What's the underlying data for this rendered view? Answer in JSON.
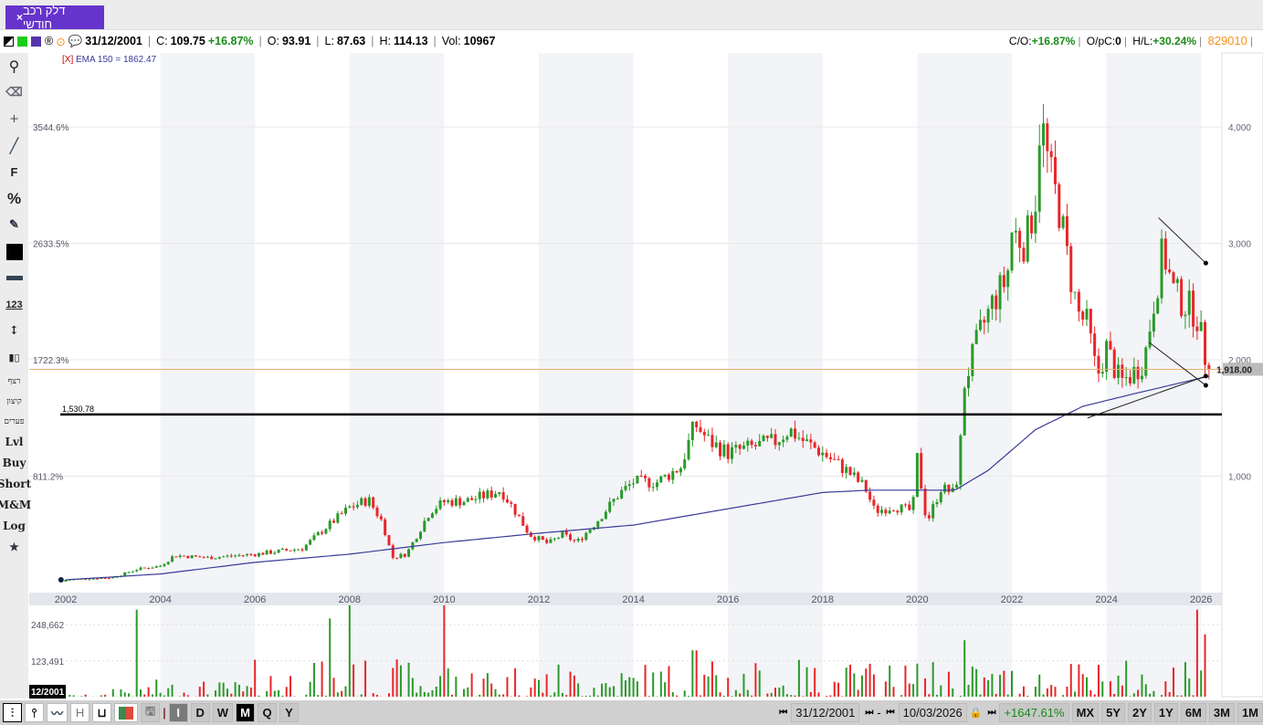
{
  "tab": {
    "title": "דלק רכב חודשי",
    "close": "×"
  },
  "info": {
    "date": "31/12/2001",
    "c_label": "C:",
    "close": "109.75",
    "change": "+16.87%",
    "o_label": "O:",
    "open": "93.91",
    "l_label": "L:",
    "low": "87.63",
    "h_label": "H:",
    "high": "114.13",
    "vol_label": "Vol:",
    "volume": "10967"
  },
  "info_right": {
    "co_label": "C/O:",
    "co": "+16.87%",
    "opc_label": "O/pC:",
    "opc": "0",
    "hl_label": "H/L:",
    "hl": "+30.24%",
    "id": "829010"
  },
  "indicator": {
    "remove": "[X]",
    "label": "EMA 150 = 1862.47"
  },
  "left_toolbar": {
    "font": "F",
    "percent": "%",
    "numbers": "123",
    "heb1": "רצף",
    "heb2": "קיצון",
    "heb3": "פערים",
    "lvl": "Lvl",
    "buy": "Buy",
    "short": "Short",
    "mm": "M&M",
    "log": "Log"
  },
  "bottom": {
    "types": [
      "H"
    ],
    "periods": [
      "I",
      "D",
      "W",
      "M",
      "Q",
      "Y"
    ],
    "selected_period": "M",
    "start_date": "31/12/2001",
    "end_date": "10/03/2026",
    "total_change": "+1647.61%",
    "ranges": [
      "MX",
      "5Y",
      "2Y",
      "1Y",
      "6M",
      "3M",
      "1M"
    ]
  },
  "colors": {
    "up": "#2a9a2a",
    "down": "#e8262a",
    "ema": "#3a3a9a",
    "accent": "#6633cc",
    "orange": "#f7931e"
  },
  "chart_data": {
    "type": "candlestick",
    "title": "דלק רכב חודשי",
    "x_ticks": [
      "2002",
      "2004",
      "2006",
      "2008",
      "2010",
      "2012",
      "2014",
      "2016",
      "2018",
      "2020",
      "2022",
      "2024",
      "2026"
    ],
    "right_ticks": [
      {
        "v": 1000,
        "label": "1,000"
      },
      {
        "v": 2000,
        "label": "2,000"
      },
      {
        "v": 3000,
        "label": "3,000"
      },
      {
        "v": 4000,
        "label": "4,000"
      }
    ],
    "left_ticks": [
      {
        "v": 1000,
        "label": "811.2%"
      },
      {
        "v": 2000,
        "label": "1722.3%"
      },
      {
        "v": 3000,
        "label": "2633.5%"
      },
      {
        "v": 4000,
        "label": "3544.6%"
      }
    ],
    "ylim": [
      0,
      4550
    ],
    "xlim": [
      2001.2,
      2026.45
    ],
    "last_price": {
      "v": 1918,
      "label": "1,918.00"
    },
    "level_line": {
      "v": 1530.78,
      "label": "1,530.78"
    },
    "volume_ticks": [
      {
        "v": 123491,
        "label": "123,491"
      },
      {
        "v": 248662,
        "label": "248,662"
      }
    ],
    "volume_max": 315000,
    "cursor_date_label": "12/2001",
    "price_keypoints": [
      [
        2002.0,
        110
      ],
      [
        2003.0,
        130
      ],
      [
        2003.5,
        200
      ],
      [
        2004.0,
        230
      ],
      [
        2004.3,
        320
      ],
      [
        2005,
        300
      ],
      [
        2006,
        330
      ],
      [
        2007,
        380
      ],
      [
        2007.5,
        560
      ],
      [
        2008.0,
        730
      ],
      [
        2008.4,
        800
      ],
      [
        2008.7,
        600
      ],
      [
        2008.9,
        300
      ],
      [
        2009.2,
        330
      ],
      [
        2009.7,
        700
      ],
      [
        2010,
        780
      ],
      [
        2010.5,
        790
      ],
      [
        2011,
        850
      ],
      [
        2011.2,
        880
      ],
      [
        2011.5,
        700
      ],
      [
        2011.8,
        500
      ],
      [
        2012.2,
        420
      ],
      [
        2012.5,
        500
      ],
      [
        2012.8,
        430
      ],
      [
        2013.2,
        600
      ],
      [
        2013.7,
        850
      ],
      [
        2014,
        950
      ],
      [
        2014.5,
        950
      ],
      [
        2015,
        1080
      ],
      [
        2015.3,
        1450
      ],
      [
        2015.6,
        1300
      ],
      [
        2016,
        1200
      ],
      [
        2016.5,
        1250
      ],
      [
        2017,
        1300
      ],
      [
        2017.3,
        1400
      ],
      [
        2017.6,
        1300
      ],
      [
        2018,
        1200
      ],
      [
        2018.5,
        1050
      ],
      [
        2018.9,
        900
      ],
      [
        2019.1,
        700
      ],
      [
        2019.5,
        740
      ],
      [
        2019.9,
        700
      ],
      [
        2020.0,
        1150
      ],
      [
        2020.2,
        600
      ],
      [
        2020.5,
        900
      ],
      [
        2020.8,
        850
      ],
      [
        2020.9,
        1200
      ],
      [
        2021.0,
        1800
      ],
      [
        2021.3,
        2200
      ],
      [
        2021.6,
        2500
      ],
      [
        2021.9,
        2700
      ],
      [
        2022.0,
        3100
      ],
      [
        2022.3,
        3000
      ],
      [
        2022.5,
        3400
      ],
      [
        2022.6,
        4100
      ],
      [
        2022.8,
        3600
      ],
      [
        2023.0,
        3300
      ],
      [
        2023.2,
        2800
      ],
      [
        2023.4,
        2400
      ],
      [
        2023.6,
        2300
      ],
      [
        2023.8,
        1850
      ],
      [
        2024.0,
        2100
      ],
      [
        2024.3,
        1800
      ],
      [
        2024.6,
        1900
      ],
      [
        2024.8,
        2000
      ],
      [
        2025.0,
        2500
      ],
      [
        2025.2,
        2950
      ],
      [
        2025.4,
        2600
      ],
      [
        2025.6,
        2500
      ],
      [
        2025.9,
        2400
      ],
      [
        2026.1,
        2000
      ],
      [
        2026.2,
        1918
      ]
    ],
    "ema_keypoints": [
      [
        2002,
        110
      ],
      [
        2004,
        160
      ],
      [
        2006,
        260
      ],
      [
        2008,
        330
      ],
      [
        2010,
        430
      ],
      [
        2012,
        510
      ],
      [
        2014,
        580
      ],
      [
        2016,
        720
      ],
      [
        2018,
        860
      ],
      [
        2019,
        880
      ],
      [
        2020.8,
        880
      ],
      [
        2021.5,
        1050
      ],
      [
        2022.5,
        1400
      ],
      [
        2023.5,
        1600
      ],
      [
        2024.5,
        1700
      ],
      [
        2026.2,
        1862
      ]
    ],
    "trend_lines": [
      [
        [
          2025.1,
          3220
        ],
        [
          2026.1,
          2830
        ]
      ],
      [
        [
          2024.9,
          2150
        ],
        [
          2026.1,
          1780
        ]
      ],
      [
        [
          2023.6,
          1500
        ],
        [
          2026.1,
          1860
        ]
      ]
    ],
    "volume_spikes": [
      [
        2003.5,
        300000
      ],
      [
        2007.6,
        270000
      ],
      [
        2008.0,
        315000
      ],
      [
        2010.0,
        315000
      ],
      [
        2015.3,
        160000
      ],
      [
        2021.0,
        195000
      ],
      [
        2025.9,
        300000
      ],
      [
        2026.1,
        215000
      ]
    ]
  }
}
